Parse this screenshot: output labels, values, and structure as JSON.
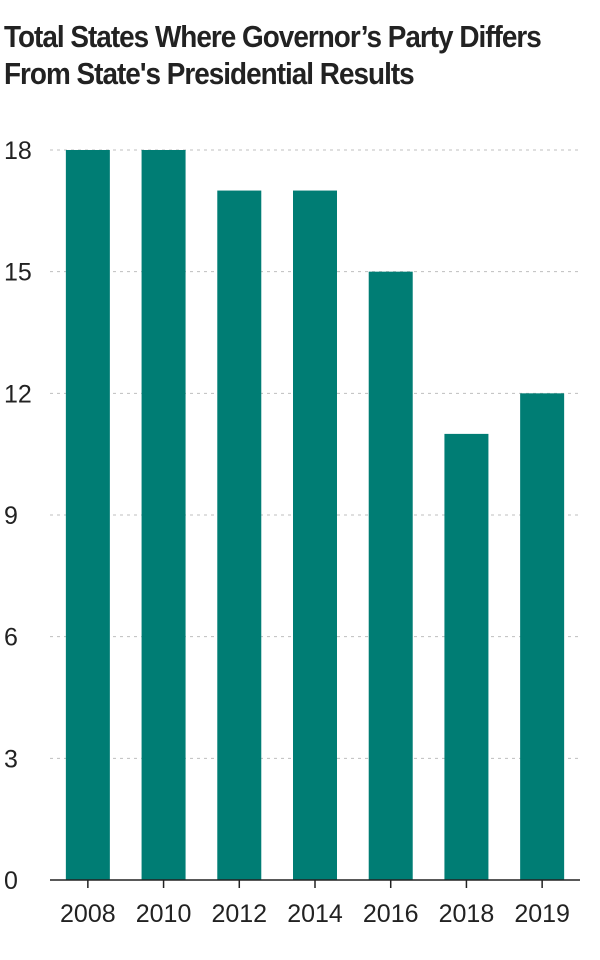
{
  "chart_data": {
    "type": "bar",
    "title_lines": [
      "Total States Where Governor’s Party Differs",
      "From State's Presidential Results"
    ],
    "categories": [
      "2008",
      "2010",
      "2012",
      "2014",
      "2016",
      "2018",
      "2019"
    ],
    "values": [
      18,
      18,
      17,
      17,
      15,
      11,
      12
    ],
    "ylim": [
      0,
      18
    ],
    "yticks": [
      0,
      3,
      6,
      9,
      12,
      15,
      18
    ],
    "xlabel": "",
    "ylabel": "",
    "grid": true,
    "legend": "none",
    "bar_color": "#007D74"
  }
}
